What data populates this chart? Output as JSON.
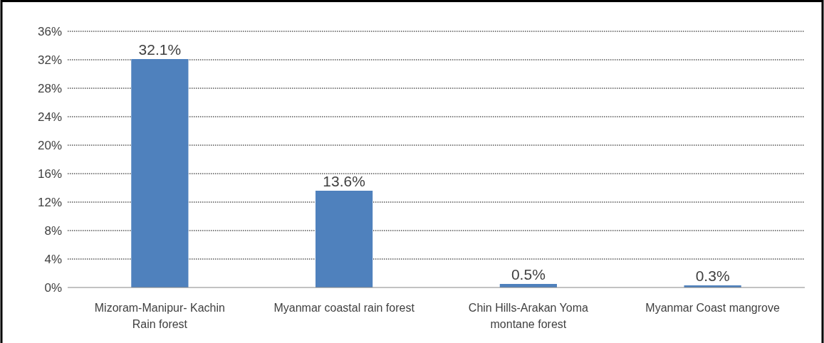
{
  "chart_data": {
    "type": "bar",
    "categories": [
      "Mizoram-Manipur- Kachin Rain forest",
      "Myanmar coastal rain forest",
      "Chin Hills-Arakan Yoma montane forest",
      "Myanmar Coast mangrove"
    ],
    "values": [
      32.1,
      13.6,
      0.5,
      0.3
    ],
    "value_labels": [
      "32.1%",
      "13.6%",
      "0.5%",
      "0.3%"
    ],
    "color": "#4f81bd",
    "ylim": [
      0,
      36
    ],
    "yticks": [
      {
        "value": 0,
        "label": "0%"
      },
      {
        "value": 4,
        "label": "4%"
      },
      {
        "value": 8,
        "label": "8%"
      },
      {
        "value": 12,
        "label": "12%"
      },
      {
        "value": 16,
        "label": "16%"
      },
      {
        "value": 20,
        "label": "20%"
      },
      {
        "value": 24,
        "label": "24%"
      },
      {
        "value": 28,
        "label": "28%"
      },
      {
        "value": 32,
        "label": "32%"
      },
      {
        "value": 36,
        "label": "36%"
      }
    ],
    "grid": "y"
  }
}
